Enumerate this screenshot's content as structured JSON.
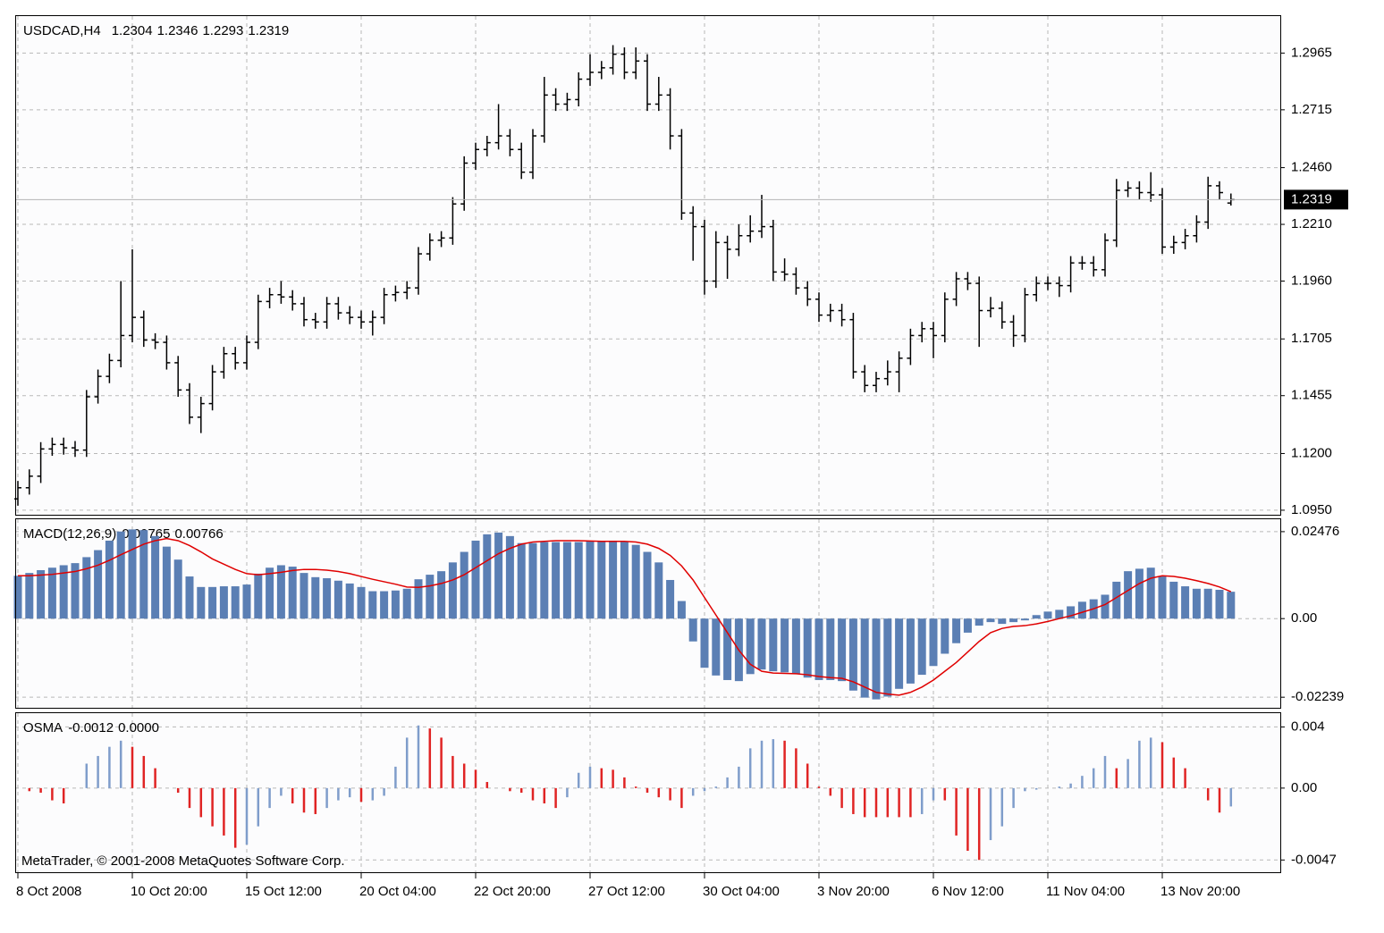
{
  "chart_data": [
    {
      "type": "ohlc",
      "title": "USDCAD,H4",
      "color": "#000000",
      "last_line_color": "#b4b4b4",
      "grid": true,
      "categories": [
        "8 Oct 2008",
        null,
        null,
        null,
        null,
        null,
        null,
        null,
        null,
        null,
        "10 Oct 20:00",
        null,
        null,
        null,
        null,
        null,
        null,
        null,
        null,
        null,
        "15 Oct 12:00",
        null,
        null,
        null,
        null,
        null,
        null,
        null,
        null,
        null,
        "20 Oct 04:00",
        null,
        null,
        null,
        null,
        null,
        null,
        null,
        null,
        null,
        "22 Oct 20:00",
        null,
        null,
        null,
        null,
        null,
        null,
        null,
        null,
        null,
        "27 Oct 12:00",
        null,
        null,
        null,
        null,
        null,
        null,
        null,
        null,
        null,
        "30 Oct 04:00",
        null,
        null,
        null,
        null,
        null,
        null,
        null,
        null,
        null,
        "3 Nov 20:00",
        null,
        null,
        null,
        null,
        null,
        null,
        null,
        null,
        null,
        "6 Nov 12:00",
        null,
        null,
        null,
        null,
        null,
        null,
        null,
        null,
        null,
        "11 Nov 04:00",
        null,
        null,
        null,
        null,
        null,
        null,
        null,
        null,
        null,
        "13 Nov 20:00",
        null,
        null,
        null,
        null,
        null,
        null
      ],
      "open": [
        1.1,
        1.1049,
        1.11,
        1.122,
        1.124,
        1.1225,
        1.1215,
        1.145,
        1.154,
        1.161,
        1.172,
        1.18,
        1.17,
        1.169,
        1.16,
        1.148,
        1.136,
        1.142,
        1.156,
        1.164,
        1.16,
        1.169,
        1.187,
        1.19,
        1.189,
        1.186,
        1.179,
        1.178,
        1.186,
        1.182,
        1.18,
        1.178,
        1.18,
        1.19,
        1.191,
        1.193,
        1.208,
        1.214,
        1.215,
        1.23,
        1.248,
        1.254,
        1.257,
        1.26,
        1.254,
        1.244,
        1.26,
        1.278,
        1.274,
        1.276,
        1.285,
        1.288,
        1.29,
        1.296,
        1.288,
        1.293,
        1.274,
        1.278,
        1.26,
        1.226,
        1.22,
        1.196,
        1.213,
        1.21,
        1.216,
        1.218,
        1.22,
        1.2,
        1.199,
        1.193,
        1.188,
        1.181,
        1.183,
        1.179,
        1.156,
        1.15,
        1.153,
        1.156,
        1.162,
        1.172,
        1.175,
        1.172,
        1.188,
        1.197,
        1.195,
        1.183,
        1.184,
        1.178,
        1.172,
        1.19,
        1.195,
        1.195,
        1.194,
        1.204,
        1.204,
        1.201,
        1.214,
        1.236,
        1.237,
        1.235,
        1.234,
        1.211,
        1.213,
        1.216,
        1.222,
        1.238,
        1.2304
      ],
      "high": [
        1.1079,
        1.113,
        1.125,
        1.127,
        1.127,
        1.1255,
        1.148,
        1.157,
        1.164,
        1.196,
        1.21,
        1.183,
        1.173,
        1.172,
        1.163,
        1.151,
        1.145,
        1.159,
        1.167,
        1.167,
        1.172,
        1.19,
        1.193,
        1.196,
        1.192,
        1.189,
        1.182,
        1.189,
        1.189,
        1.185,
        1.183,
        1.183,
        1.193,
        1.194,
        1.196,
        1.211,
        1.217,
        1.218,
        1.233,
        1.251,
        1.257,
        1.26,
        1.274,
        1.263,
        1.257,
        1.263,
        1.286,
        1.281,
        1.279,
        1.288,
        1.296,
        1.293,
        1.3,
        1.299,
        1.299,
        1.296,
        1.286,
        1.281,
        1.263,
        1.229,
        1.223,
        1.218,
        1.216,
        1.221,
        1.225,
        1.234,
        1.223,
        1.206,
        1.202,
        1.196,
        1.191,
        1.186,
        1.186,
        1.182,
        1.159,
        1.156,
        1.161,
        1.165,
        1.175,
        1.178,
        1.178,
        1.191,
        1.2,
        1.2,
        1.198,
        1.189,
        1.187,
        1.181,
        1.193,
        1.198,
        1.198,
        1.198,
        1.207,
        1.207,
        1.207,
        1.217,
        1.241,
        1.24,
        1.24,
        1.244,
        1.237,
        1.216,
        1.219,
        1.225,
        1.242,
        1.24,
        1.2346
      ],
      "low": [
        1.097,
        1.1019,
        1.107,
        1.119,
        1.1195,
        1.1185,
        1.1185,
        1.142,
        1.151,
        1.158,
        1.169,
        1.167,
        1.166,
        1.157,
        1.145,
        1.133,
        1.129,
        1.139,
        1.153,
        1.157,
        1.157,
        1.166,
        1.184,
        1.186,
        1.183,
        1.176,
        1.175,
        1.175,
        1.179,
        1.177,
        1.175,
        1.172,
        1.177,
        1.187,
        1.188,
        1.19,
        1.205,
        1.211,
        1.212,
        1.227,
        1.245,
        1.251,
        1.254,
        1.251,
        1.241,
        1.241,
        1.257,
        1.271,
        1.271,
        1.273,
        1.282,
        1.285,
        1.287,
        1.285,
        1.285,
        1.271,
        1.271,
        1.254,
        1.223,
        1.205,
        1.19,
        1.193,
        1.197,
        1.207,
        1.213,
        1.215,
        1.196,
        1.196,
        1.19,
        1.185,
        1.178,
        1.178,
        1.176,
        1.153,
        1.147,
        1.147,
        1.15,
        1.147,
        1.159,
        1.169,
        1.162,
        1.169,
        1.185,
        1.192,
        1.167,
        1.18,
        1.175,
        1.167,
        1.169,
        1.187,
        1.192,
        1.189,
        1.191,
        1.201,
        1.198,
        1.198,
        1.211,
        1.233,
        1.232,
        1.231,
        1.208,
        1.208,
        1.21,
        1.213,
        1.219,
        1.232,
        1.2293
      ],
      "close": [
        1.1049,
        1.11,
        1.122,
        1.124,
        1.1225,
        1.1215,
        1.145,
        1.154,
        1.161,
        1.172,
        1.18,
        1.17,
        1.169,
        1.16,
        1.148,
        1.136,
        1.142,
        1.156,
        1.164,
        1.16,
        1.169,
        1.187,
        1.19,
        1.189,
        1.186,
        1.179,
        1.178,
        1.186,
        1.182,
        1.18,
        1.178,
        1.18,
        1.19,
        1.191,
        1.193,
        1.208,
        1.214,
        1.215,
        1.23,
        1.248,
        1.254,
        1.257,
        1.26,
        1.254,
        1.244,
        1.26,
        1.278,
        1.274,
        1.276,
        1.285,
        1.288,
        1.29,
        1.296,
        1.288,
        1.293,
        1.274,
        1.278,
        1.26,
        1.226,
        1.22,
        1.196,
        1.213,
        1.21,
        1.216,
        1.218,
        1.22,
        1.2,
        1.199,
        1.193,
        1.188,
        1.181,
        1.183,
        1.179,
        1.156,
        1.15,
        1.153,
        1.156,
        1.162,
        1.172,
        1.175,
        1.172,
        1.188,
        1.197,
        1.195,
        1.183,
        1.184,
        1.178,
        1.172,
        1.19,
        1.195,
        1.195,
        1.194,
        1.204,
        1.204,
        1.201,
        1.214,
        1.236,
        1.237,
        1.235,
        1.234,
        1.211,
        1.213,
        1.216,
        1.222,
        1.238,
        1.235,
        1.2319
      ],
      "ylim": [
        1.093,
        1.3128
      ],
      "yticks": [
        {
          "value": 1.095,
          "label": "1.0950"
        },
        {
          "value": 1.12,
          "label": "1.1200"
        },
        1.1455,
        1.1705,
        {
          "value": 1.196,
          "label": "1.1960"
        },
        {
          "value": 1.221,
          "label": "1.2210"
        },
        {
          "value": 1.246,
          "label": "1.2460"
        },
        1.2715,
        1.2965
      ]
    },
    {
      "type": "macd",
      "title": "MACD(12,26,9)",
      "grid": true,
      "series": [
        {
          "color": "#5b7fb4",
          "values": [
            0.0122,
            0.013,
            0.0138,
            0.0145,
            0.0152,
            0.0158,
            0.0175,
            0.0195,
            0.0222,
            0.0248,
            0.0254,
            0.0252,
            0.0235,
            0.0205,
            0.0168,
            0.012,
            0.009,
            0.009,
            0.0092,
            0.0092,
            0.0097,
            0.0128,
            0.0145,
            0.0152,
            0.0148,
            0.013,
            0.0118,
            0.0115,
            0.0108,
            0.01,
            0.009,
            0.0078,
            0.0078,
            0.008,
            0.0085,
            0.0112,
            0.0125,
            0.0135,
            0.016,
            0.019,
            0.0222,
            0.024,
            0.0245,
            0.0235,
            0.0215,
            0.0215,
            0.0218,
            0.0218,
            0.0218,
            0.0218,
            0.022,
            0.022,
            0.0222,
            0.0218,
            0.021,
            0.019,
            0.016,
            0.011,
            0.005,
            -0.0065,
            -0.014,
            -0.0162,
            -0.0175,
            -0.0178,
            -0.0158,
            -0.0145,
            -0.015,
            -0.0153,
            -0.0158,
            -0.0168,
            -0.0175,
            -0.0175,
            -0.0178,
            -0.0205,
            -0.0225,
            -0.023,
            -0.0222,
            -0.02,
            -0.0185,
            -0.016,
            -0.0135,
            -0.01,
            -0.007,
            -0.004,
            -0.002,
            -0.001,
            -0.0015,
            -0.001,
            -0.0005,
            0.001,
            0.002,
            0.0025,
            0.0035,
            0.0048,
            0.0055,
            0.0068,
            0.0105,
            0.0135,
            0.0142,
            0.0145,
            0.012,
            0.0105,
            0.0092,
            0.0085,
            0.0085,
            0.0082,
            0.00765
          ]
        },
        {
          "color": "#e00000",
          "values": [
            0.0122,
            0.0122,
            0.0124,
            0.0126,
            0.013,
            0.0134,
            0.0142,
            0.0152,
            0.0166,
            0.0182,
            0.0197,
            0.0212,
            0.0222,
            0.0228,
            0.0222,
            0.0208,
            0.019,
            0.017,
            0.0155,
            0.014,
            0.0128,
            0.0125,
            0.0128,
            0.0132,
            0.0137,
            0.014,
            0.014,
            0.0138,
            0.0134,
            0.0128,
            0.012,
            0.0112,
            0.0105,
            0.0098,
            0.009,
            0.0089,
            0.0093,
            0.01,
            0.011,
            0.0125,
            0.0145,
            0.0165,
            0.0185,
            0.02,
            0.0212,
            0.0218,
            0.022,
            0.0222,
            0.0222,
            0.0222,
            0.0221,
            0.022,
            0.022,
            0.022,
            0.0218,
            0.0212,
            0.02,
            0.018,
            0.015,
            0.011,
            0.006,
            0.001,
            -0.004,
            -0.009,
            -0.013,
            -0.015,
            -0.0155,
            -0.0156,
            -0.0157,
            -0.016,
            -0.0165,
            -0.0168,
            -0.017,
            -0.018,
            -0.0195,
            -0.021,
            -0.0215,
            -0.0218,
            -0.021,
            -0.0195,
            -0.0175,
            -0.015,
            -0.0125,
            -0.0095,
            -0.0065,
            -0.004,
            -0.0028,
            -0.0022,
            -0.002,
            -0.0015,
            -0.0008,
            0,
            0.0008,
            0.0018,
            0.0028,
            0.004,
            0.006,
            0.008,
            0.01,
            0.0115,
            0.0122,
            0.012,
            0.0115,
            0.0108,
            0.01,
            0.009,
            0.00766
          ]
        }
      ],
      "ylim": [
        -0.0254,
        0.0283
      ],
      "yticks": [
        -0.02239,
        {
          "value": 0,
          "label": "0.00"
        },
        0.02476
      ]
    },
    {
      "type": "osma",
      "title": "OSMA",
      "grid": true,
      "up_color": "#7f9dcb",
      "down_color": "#e02424",
      "zero_level": {
        "value": 0,
        "label": "0.0000"
      },
      "values": [
        0,
        -0.0002,
        -0.0003,
        -0.0008,
        -0.001,
        0,
        0.0016,
        0.0021,
        0.0027,
        0.0031,
        0.0027,
        0.0021,
        0.0013,
        0,
        -0.0003,
        -0.0013,
        -0.0019,
        -0.0025,
        -0.0031,
        -0.0039,
        -0.0037,
        -0.0025,
        -0.0013,
        -0.0005,
        -0.001,
        -0.0016,
        -0.0017,
        -0.0013,
        -0.0008,
        -0.0006,
        -0.0009,
        -0.0008,
        -0.0005,
        0.0014,
        0.0033,
        0.0041,
        0.0039,
        0.0033,
        0.0021,
        0.0016,
        0.0012,
        0.0004,
        0,
        -0.0002,
        -0.0003,
        -0.0008,
        -0.001,
        -0.0013,
        -0.0006,
        0.001,
        0.0014,
        0.0013,
        0.0012,
        0.0007,
        0.0001,
        -0.0003,
        -0.0006,
        -0.0008,
        -0.0013,
        -0.0005,
        -0.0002,
        0.0001,
        0.0007,
        0.0014,
        0.0026,
        0.0031,
        0.0032,
        0.0031,
        0.0026,
        0.0016,
        0.0001,
        -0.0005,
        -0.0013,
        -0.0017,
        -0.0019,
        -0.0019,
        -0.0019,
        -0.0019,
        -0.0019,
        -0.0017,
        -0.0008,
        -0.0008,
        -0.0031,
        -0.0041,
        -0.0047,
        -0.0034,
        -0.0025,
        -0.0013,
        -0.0002,
        -0.0001,
        0,
        0.0001,
        0.0003,
        0.0008,
        0.0013,
        0.0021,
        0.0013,
        0.0019,
        0.0031,
        0.0033,
        0.003,
        0.002,
        0.0013,
        0,
        -0.0008,
        -0.0016,
        -0.0012
      ],
      "ylim": [
        -0.0055,
        0.0049
      ],
      "yticks": [
        -0.0047,
        {
          "value": 0,
          "label": "0.00"
        },
        0.004
      ]
    }
  ],
  "footer": "MetaTrader, © 2001-2008 MetaQuotes Software Corp."
}
